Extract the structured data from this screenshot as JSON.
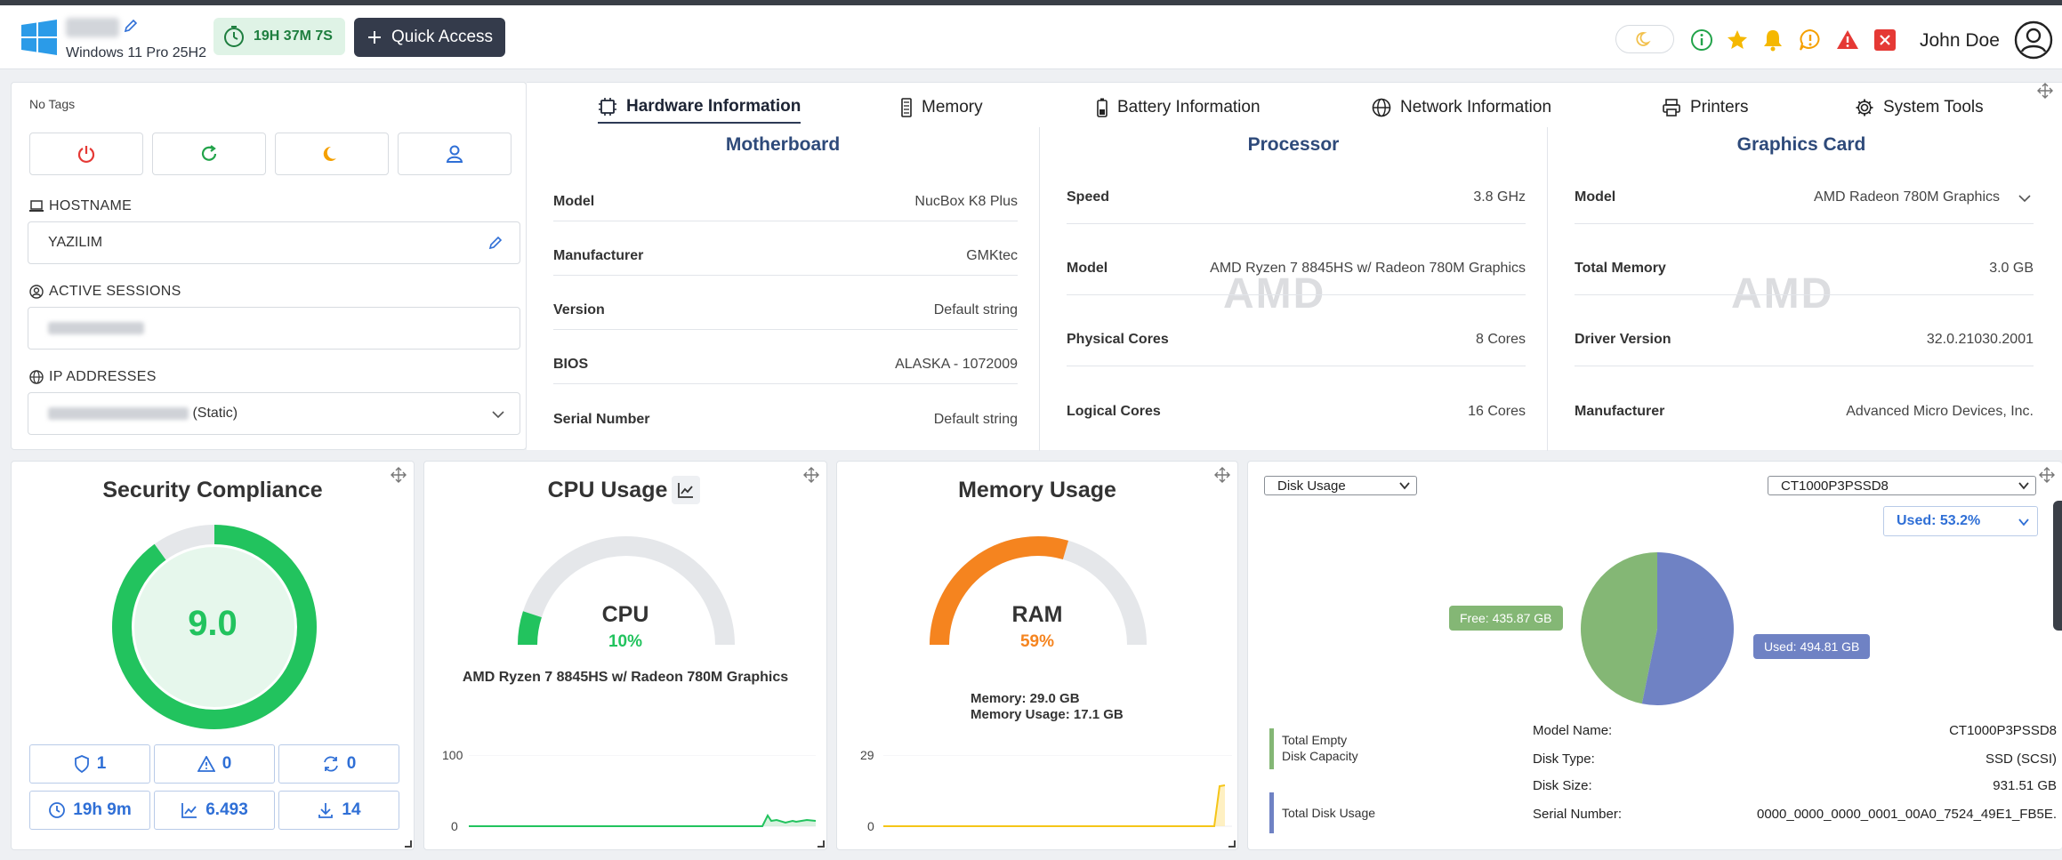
{
  "header": {
    "os": "Windows 11 Pro 25H2",
    "uptime": "19H 37M 7S",
    "quick_access": "Quick Access",
    "user": "John Doe"
  },
  "left": {
    "tags": "No Tags",
    "hostname_label": "HOSTNAME",
    "hostname": "YAZILIM",
    "sessions_label": "ACTIVE SESSIONS",
    "ip_label": "IP ADDRESSES",
    "ip_suffix": "(Static)"
  },
  "tabs": [
    "Hardware Information",
    "Memory",
    "Battery Information",
    "Network Information",
    "Printers",
    "System Tools"
  ],
  "hardware": {
    "motherboard": {
      "title": "Motherboard",
      "rows": [
        {
          "k": "Model",
          "v": "NucBox K8 Plus"
        },
        {
          "k": "Manufacturer",
          "v": "GMKtec"
        },
        {
          "k": "Version",
          "v": "Default string"
        },
        {
          "k": "BIOS",
          "v": "ALASKA - 1072009"
        },
        {
          "k": "Serial Number",
          "v": "Default string"
        }
      ]
    },
    "processor": {
      "title": "Processor",
      "logo": "AMD",
      "rows": [
        {
          "k": "Speed",
          "v": "3.8 GHz"
        },
        {
          "k": "Model",
          "v": "AMD Ryzen 7 8845HS w/ Radeon 780M Graphics"
        },
        {
          "k": "Physical Cores",
          "v": "8 Cores"
        },
        {
          "k": "Logical Cores",
          "v": "16 Cores"
        }
      ]
    },
    "graphics": {
      "title": "Graphics Card",
      "logo": "AMD",
      "rows": [
        {
          "k": "Model",
          "v": "AMD Radeon 780M Graphics"
        },
        {
          "k": "Total Memory",
          "v": "3.0 GB"
        },
        {
          "k": "Driver Version",
          "v": "32.0.21030.2001"
        },
        {
          "k": "Manufacturer",
          "v": "Advanced Micro Devices, Inc."
        }
      ]
    }
  },
  "security": {
    "title": "Security Compliance",
    "score": "9.0",
    "score_fraction": 0.9,
    "stats": [
      "1",
      "0",
      "0",
      "19h 9m",
      "6.493",
      "14"
    ],
    "color": "#22c35e"
  },
  "cpu": {
    "title": "CPU Usage",
    "label": "CPU",
    "percent": "10%",
    "fraction": 0.1,
    "model": "AMD Ryzen 7 8845HS w/ Radeon 780M Graphics",
    "y_max": "100",
    "y_min": "0",
    "color": "#22c35e"
  },
  "memory": {
    "title": "Memory Usage",
    "label": "RAM",
    "percent": "59%",
    "fraction": 0.59,
    "total": "Memory: 29.0 GB",
    "used": "Memory Usage: 17.1 GB",
    "y_max": "29",
    "y_min": "0",
    "color": "#f5841f"
  },
  "disk": {
    "select_type": "Disk Usage",
    "select_drive": "CT1000P3PSSD8",
    "select_used": "Used: 53.2%",
    "free_label": "Free: 435.87 GB",
    "used_label": "Used: 494.81 GB",
    "used_fraction": 0.532,
    "free_color": "#84b775",
    "used_color": "#6f82c4",
    "legend_free": [
      "Total Empty",
      "Disk Capacity"
    ],
    "legend_used": "Total Disk Usage",
    "info": [
      {
        "k": "Model Name:",
        "v": "CT1000P3PSSD8"
      },
      {
        "k": "Disk Type:",
        "v": "SSD (SCSI)"
      },
      {
        "k": "Disk Size:",
        "v": "931.51 GB"
      },
      {
        "k": "Serial Number:",
        "v": "0000_0000_0000_0001_00A0_7524_49E1_FB5E."
      }
    ]
  }
}
